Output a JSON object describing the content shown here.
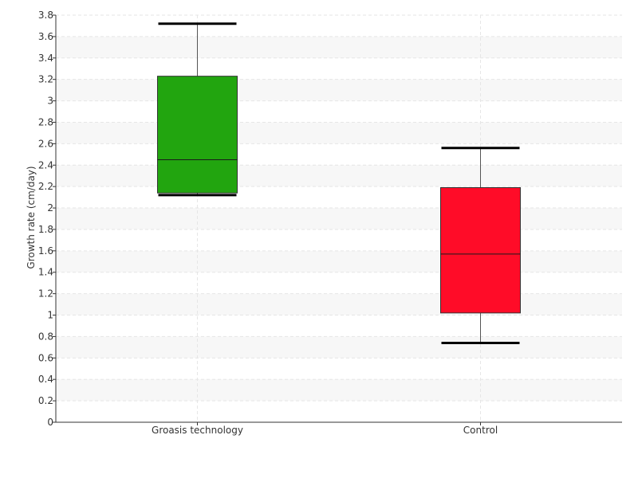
{
  "chart_data": {
    "type": "box",
    "ylabel": "Growth rate (cm/day)",
    "xlabel": "",
    "ylim": [
      0,
      3.8
    ],
    "ytick_step": 0.2,
    "yticks": [
      "0",
      "0.2",
      "0.4",
      "0.6",
      "0.8",
      "1",
      "1.2",
      "1.4",
      "1.6",
      "1.8",
      "2",
      "2.2",
      "2.4",
      "2.6",
      "2.8",
      "3",
      "3.2",
      "3.4",
      "3.6",
      "3.8"
    ],
    "categories": [
      "Groasis technology",
      "Control"
    ],
    "boxes": [
      {
        "category": "Groasis technology",
        "min": 2.12,
        "q1": 2.14,
        "median": 2.45,
        "q3": 3.23,
        "max": 3.72,
        "color": "#22a50f"
      },
      {
        "category": "Control",
        "min": 0.74,
        "q1": 1.02,
        "median": 1.57,
        "q3": 2.19,
        "max": 2.56,
        "color": "#ff0c28"
      }
    ],
    "grid": true,
    "legend": "none"
  }
}
